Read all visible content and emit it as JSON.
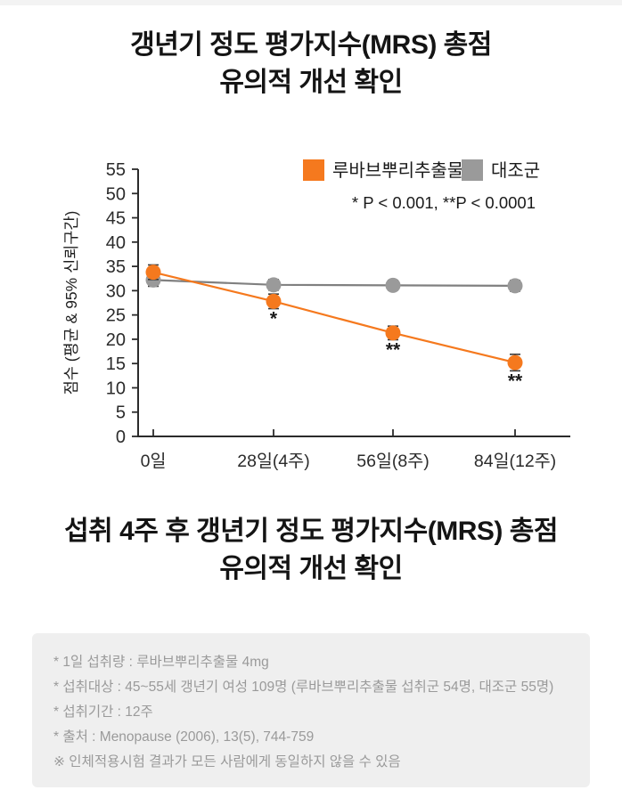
{
  "title": {
    "line1": "갱년기 정도 평가지수(MRS) 총점",
    "line2": "유의적 개선 확인"
  },
  "chart_data": {
    "type": "line",
    "categories": [
      "0일",
      "28일(4주)",
      "56일(8주)",
      "84일(12주)"
    ],
    "ylabel": "점수 (평균 & 95% 신뢰구간)",
    "ylim": [
      0,
      55
    ],
    "ytick_step": 5,
    "grid": false,
    "legend_position": "top-right",
    "significance_note": "* P < 0.001, **P < 0.0001",
    "series": [
      {
        "name": "루바브뿌리추출물",
        "color": "#F5791E",
        "line_color": "#F5791E",
        "values": [
          33.8,
          27.8,
          21.3,
          15.2
        ],
        "error": [
          1.5,
          1.5,
          1.4,
          1.7
        ],
        "markers": [
          "",
          "*",
          "**",
          "**"
        ]
      },
      {
        "name": "대조군",
        "color": "#9A9A9A",
        "line_color": "#808080",
        "values": [
          32.2,
          31.2,
          31.1,
          31.0
        ],
        "error": [
          1.3,
          1.1,
          1.0,
          1.1
        ],
        "markers": [
          "",
          "",
          "",
          ""
        ]
      }
    ]
  },
  "subtitle": {
    "line1": "섭취 4주 후 갱년기 정도 평가지수(MRS) 총점",
    "line2": "유의적 개선 확인"
  },
  "footnotes": {
    "lines": [
      "* 1일 섭취량 : 루바브뿌리추출물 4mg",
      "* 섭취대상 : 45~55세 갱년기 여성 109명 (루바브뿌리추출물 섭취군 54명, 대조군 55명)",
      "* 섭취기간 : 12주",
      "* 출처 : Menopause (2006), 13(5), 744-759",
      "※ 인체적용시험 결과가 모든 사람에게 동일하지 않을 수 있음"
    ]
  },
  "colors": {
    "accent_orange": "#F5791E",
    "control_gray": "#9A9A9A",
    "error_bar": "#3A3A3A",
    "footnote_bg": "#EFEFEF",
    "footnote_text": "#9A9A9A",
    "title_text": "#141414"
  }
}
